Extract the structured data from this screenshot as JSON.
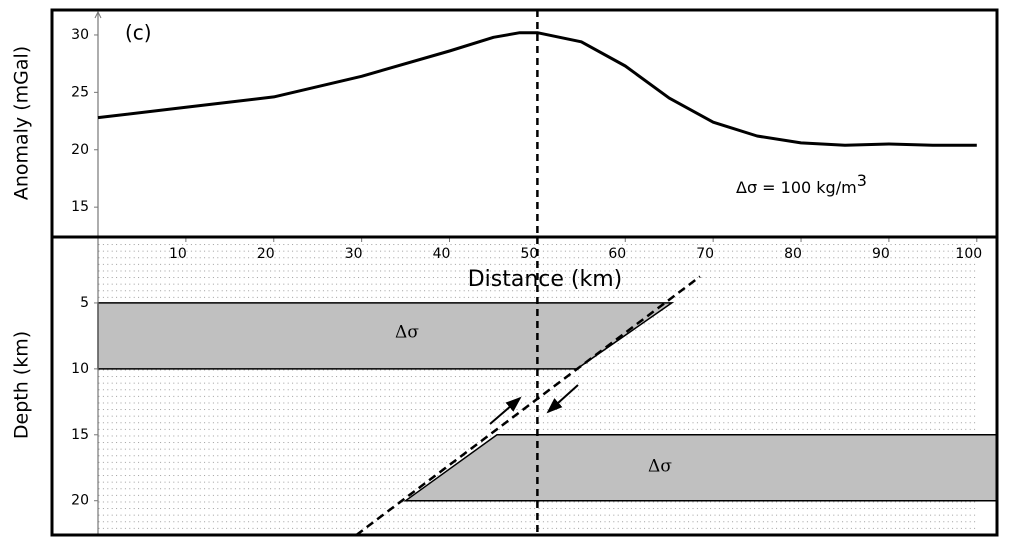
{
  "chart_data": [
    {
      "type": "line",
      "label": "(c)",
      "y_label": "Anomaly (mGal)",
      "annotation": {
        "text": "Δσ = 100 kg/m",
        "superscript": "3"
      },
      "x": [
        0,
        10,
        20,
        30,
        40,
        45,
        48,
        50,
        55,
        60,
        65,
        70,
        75,
        80,
        85,
        90,
        95,
        100
      ],
      "values": [
        22.8,
        23.7,
        24.6,
        26.4,
        28.6,
        29.8,
        30.2,
        30.2,
        29.4,
        27.3,
        24.5,
        22.4,
        21.2,
        20.6,
        20.4,
        20.5,
        20.4,
        20.4
      ],
      "color": "#000000",
      "xlim": [
        0,
        102.3
      ],
      "ylim": [
        12.4,
        32
      ],
      "yticks": [
        15,
        20,
        25,
        30
      ],
      "reference_line_x": 50
    },
    {
      "type": "cross-section",
      "x_label": "Distance (km)",
      "y_label": "Depth (km)",
      "xlim": [
        0,
        102.3
      ],
      "xticks": [
        10,
        20,
        30,
        40,
        50,
        60,
        70,
        80,
        90,
        100
      ],
      "ylim": [
        0,
        22.6
      ],
      "yticks": [
        5,
        10,
        15,
        20
      ],
      "bodies": [
        {
          "label": "Δσ",
          "x": [
            0,
            65.3,
            54.5,
            0
          ],
          "depth": [
            5,
            5,
            10,
            10
          ]
        },
        {
          "label": "Δσ",
          "x": [
            45.4,
            102.3,
            102.3,
            35
          ],
          "depth": [
            15,
            15,
            20,
            20
          ]
        }
      ],
      "body_color": "#c0c0c0",
      "fault": {
        "x": [
          29.4,
          68.5
        ],
        "depth": [
          22.6,
          3.0
        ]
      },
      "reference_line_x": 50
    }
  ]
}
